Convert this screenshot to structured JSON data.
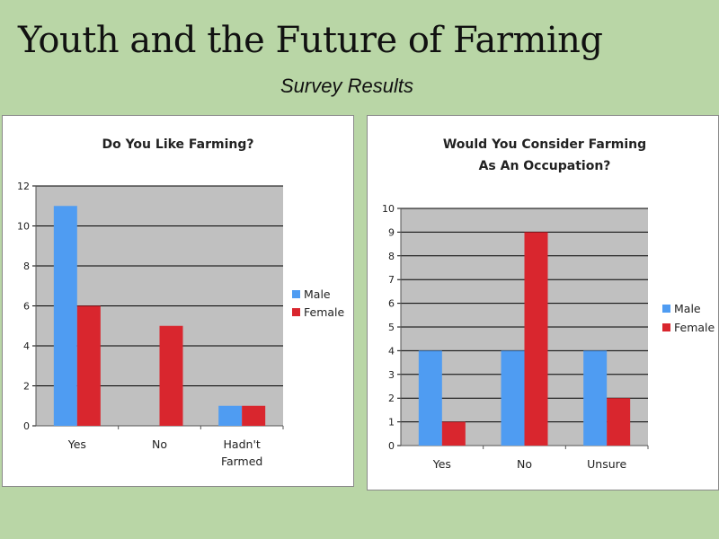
{
  "slide": {
    "title": "Youth and the Future of Farming",
    "subtitle": "Survey Results"
  },
  "colors": {
    "background": "#b9d6a6",
    "plot_area": "#c0c0c0",
    "male": "#4f9cf2",
    "female": "#d9262e"
  },
  "chart_data": [
    {
      "type": "bar",
      "title": "Do You Like Farming?",
      "categories": [
        "Yes",
        "No",
        "Hadn't Farmed"
      ],
      "series": [
        {
          "name": "Male",
          "values": [
            11,
            0,
            1
          ]
        },
        {
          "name": "Female",
          "values": [
            6,
            5,
            1
          ]
        }
      ],
      "ylim": [
        0,
        12
      ],
      "yticks": [
        0,
        2,
        4,
        6,
        8,
        10,
        12
      ],
      "xlabel": "",
      "ylabel": "",
      "grid": true,
      "legend": "right"
    },
    {
      "type": "bar",
      "title": "Would You Consider Farming As An Occupation?",
      "categories": [
        "Yes",
        "No",
        "Unsure"
      ],
      "series": [
        {
          "name": "Male",
          "values": [
            4,
            4,
            4
          ]
        },
        {
          "name": "Female",
          "values": [
            1,
            9,
            2
          ]
        }
      ],
      "ylim": [
        0,
        10
      ],
      "yticks": [
        0,
        1,
        2,
        3,
        4,
        5,
        6,
        7,
        8,
        9,
        10
      ],
      "xlabel": "",
      "ylabel": "",
      "grid": true,
      "legend": "right"
    }
  ]
}
